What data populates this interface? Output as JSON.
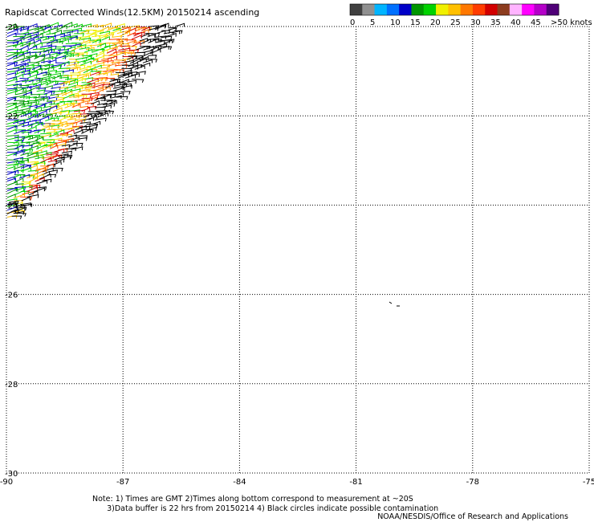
{
  "title": "Rapidscat Corrected Winds(12.5KM) 20150214 ascending",
  "legend": {
    "labels": [
      "0",
      "5",
      "10",
      "15",
      "20",
      "25",
      "30",
      "35",
      "40",
      "45",
      ">50 knots"
    ],
    "colors": [
      "#404040",
      "#909090",
      "#00b4ff",
      "#0070ff",
      "#0000c8",
      "#009600",
      "#00d200",
      "#f0f000",
      "#ffc000",
      "#ff7800",
      "#ff3c00",
      "#d20000",
      "#8c3c1e",
      "#ffb4ff",
      "#ff00ff",
      "#b400c8",
      "#500078"
    ]
  },
  "map": {
    "lon_ticks": [
      "-90",
      "-87",
      "-84",
      "-81",
      "-78",
      "-75"
    ],
    "lat_ticks": [
      "-20",
      "-22",
      "-24",
      "-26",
      "-28",
      "-30"
    ],
    "lon_range": [
      -90,
      -75
    ],
    "lat_range": [
      -20,
      -30
    ],
    "wind_colors": [
      "#0000c8",
      "#009600",
      "#00d200",
      "#f0f000",
      "#ffc000",
      "#ff7800",
      "#ff3c00",
      "#d20000",
      "#000000"
    ]
  },
  "notes": {
    "line1": "Note: 1) Times are GMT 2)Times along bottom correspond to measurement at ~20S",
    "line2": "      3)Data buffer is 22 hrs from 20150214 4) Black circles indicate possible contamination",
    "credit": "NOAA/NESDIS/Office of Research and Applications"
  }
}
